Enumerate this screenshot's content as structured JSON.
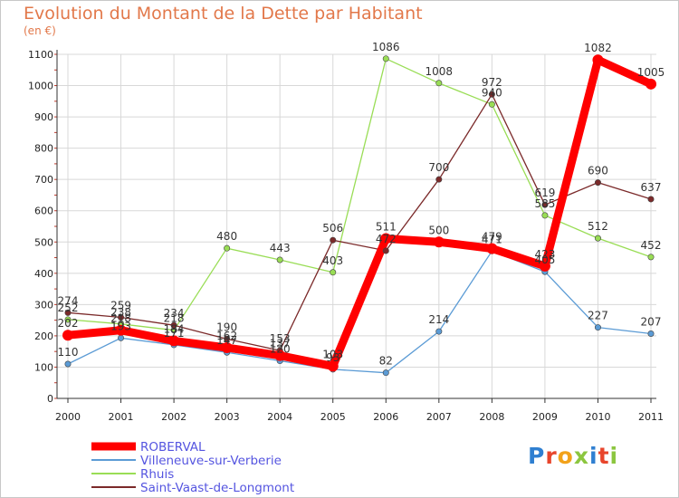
{
  "title": "Evolution du Montant de la Dette par Habitant",
  "unit": "(en €)",
  "logo": "Proxiti",
  "colors": {
    "title": "#e2784a",
    "legend_text": "#5555e0",
    "grid": "#d8d8d8",
    "axis_tick_red": "#c0392b"
  },
  "chart_data": {
    "type": "line",
    "title": "Evolution du Montant de la Dette par Habitant",
    "ylabel": "(en €)",
    "xlabel": "",
    "x": [
      "2000",
      "2001",
      "2002",
      "2003",
      "2004",
      "2005",
      "2006",
      "2007",
      "2008",
      "2009",
      "2010",
      "2011"
    ],
    "ylim": [
      0,
      1100
    ],
    "yticks": [
      0,
      100,
      200,
      300,
      400,
      500,
      600,
      700,
      800,
      900,
      1000,
      1100
    ],
    "grid": true,
    "legend_position": "bottom-left",
    "series": [
      {
        "name": "ROBERVAL",
        "color": "#ff0000",
        "values": [
          202,
          218,
          184,
          162,
          137,
          103,
          511,
          500,
          479,
          423,
          1082,
          1005
        ]
      },
      {
        "name": "Villeneuve-sur-Verberie",
        "color": "#5b9bd5",
        "values": [
          110,
          193,
          171,
          147,
          120,
          93,
          82,
          214,
          471,
          405,
          227,
          207
        ]
      },
      {
        "name": "Rhuis",
        "color": "#99dd55",
        "values": [
          252,
          238,
          218,
          480,
          443,
          403,
          1086,
          1008,
          940,
          585,
          512,
          452
        ]
      },
      {
        "name": "Saint-Vaast-de-Longmont",
        "color": "#7b2a2a",
        "values": [
          274,
          259,
          234,
          190,
          153,
          506,
          472,
          700,
          972,
          619,
          690,
          637
        ]
      }
    ]
  }
}
